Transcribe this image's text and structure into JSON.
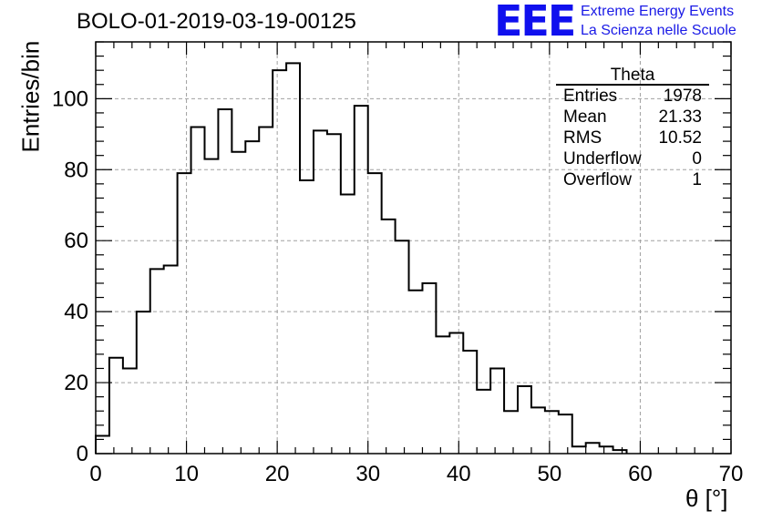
{
  "chart_data": {
    "type": "histogram",
    "title": "BOLO-01-2019-03-19-00125",
    "xlabel": "θ [°]",
    "ylabel": "Entries/bin",
    "xlim": [
      0,
      70
    ],
    "ylim": [
      0,
      116
    ],
    "grid": true,
    "bin_width": 1.5,
    "bin_start": 0,
    "values": [
      5,
      27,
      24,
      40,
      52,
      53,
      79,
      92,
      83,
      97,
      85,
      88,
      92,
      108,
      110,
      77,
      91,
      90,
      73,
      98,
      79,
      66,
      60,
      46,
      48,
      33,
      34,
      29,
      18,
      24,
      12,
      19,
      13,
      12,
      11,
      2,
      3,
      2,
      1
    ],
    "xticks": [
      "0",
      "10",
      "20",
      "30",
      "40",
      "50",
      "60",
      "70"
    ],
    "yticks": [
      "0",
      "20",
      "40",
      "60",
      "80",
      "100"
    ],
    "stats_box": {
      "name": "Theta",
      "rows": [
        {
          "label": "Entries",
          "value": "1978"
        },
        {
          "label": "Mean",
          "value": "21.33"
        },
        {
          "label": "RMS",
          "value": "10.52"
        },
        {
          "label": "Underflow",
          "value": "0"
        },
        {
          "label": "Overflow",
          "value": "1"
        }
      ]
    }
  },
  "logo": {
    "mark": "EEE",
    "line1": "Extreme Energy Events",
    "line2": "La Scienza nelle Scuole",
    "color": "#1010ee"
  }
}
